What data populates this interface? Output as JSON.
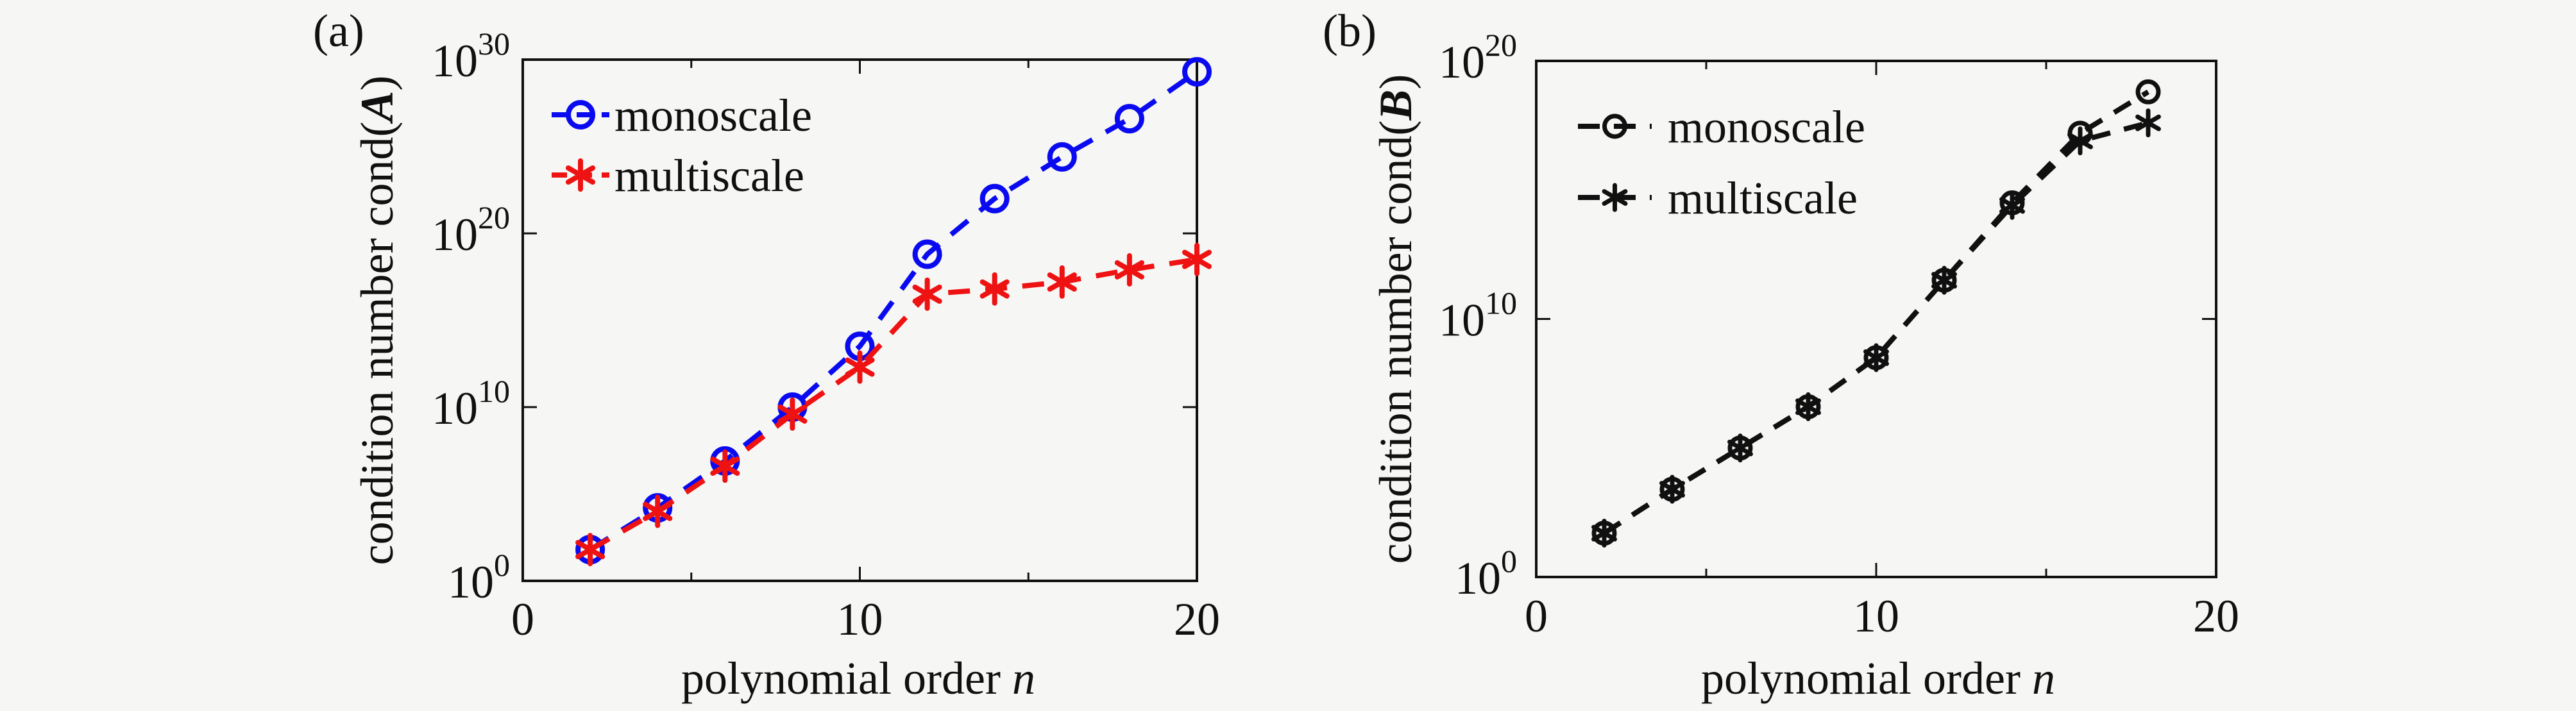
{
  "figure": {
    "background": "#f6f6f4",
    "ink": "#101010"
  },
  "chart_data": [
    {
      "id": "a",
      "type": "line",
      "panel_label": "(a)",
      "title": "",
      "xlabel_prefix": "polynomial order ",
      "xlabel_var": "n",
      "ylabel_prefix": "condition number cond(",
      "ylabel_var": "A",
      "ylabel_suffix": ")",
      "x_axis_scale": "linear",
      "y_axis_scale": "log",
      "xlim": [
        0,
        20
      ],
      "x_major_ticks": [
        0,
        10,
        20
      ],
      "x_minor_ticks": [
        5,
        15
      ],
      "y_exponent_lim": [
        0,
        30
      ],
      "y_exponent_ticks": [
        0,
        10,
        20,
        30
      ],
      "y_tick_base": "10",
      "grid": false,
      "legend_position": "top-left-inside",
      "x": [
        2,
        4,
        6,
        8,
        10,
        12,
        14,
        16,
        18,
        20
      ],
      "series": [
        {
          "name": "monoscale",
          "color": "#0a0af0",
          "marker": "circle",
          "linestyle": "dashed",
          "y_exponents": [
            1.8,
            4.2,
            6.9,
            10.0,
            13.5,
            18.8,
            22.0,
            24.4,
            26.6,
            29.3
          ]
        },
        {
          "name": "multiscale",
          "color": "#ee1212",
          "marker": "asterisk",
          "linestyle": "dashed",
          "y_exponents": [
            1.8,
            4.0,
            6.6,
            9.6,
            12.3,
            16.5,
            16.8,
            17.2,
            17.9,
            18.5
          ]
        }
      ]
    },
    {
      "id": "b",
      "type": "line",
      "panel_label": "(b)",
      "title": "",
      "xlabel_prefix": "polynomial order ",
      "xlabel_var": "n",
      "ylabel_prefix": "condition number cond(",
      "ylabel_var": "B",
      "ylabel_suffix": ")",
      "x_axis_scale": "linear",
      "y_axis_scale": "log",
      "xlim": [
        0,
        20
      ],
      "x_major_ticks": [
        0,
        10,
        20
      ],
      "x_minor_ticks": [
        5,
        15
      ],
      "y_exponent_lim": [
        0,
        20
      ],
      "y_exponent_ticks": [
        0,
        10,
        20
      ],
      "y_tick_base": "10",
      "grid": false,
      "legend_position": "top-left-inside",
      "x": [
        2,
        4,
        6,
        8,
        10,
        12,
        14,
        16,
        18
      ],
      "series": [
        {
          "name": "monoscale",
          "color": "#101010",
          "marker": "circle",
          "linestyle": "dashed",
          "y_exponents": [
            1.7,
            3.4,
            5.0,
            6.6,
            8.5,
            11.5,
            14.5,
            17.2,
            18.8
          ]
        },
        {
          "name": "multiscale",
          "color": "#101010",
          "marker": "asterisk",
          "linestyle": "dashed",
          "y_exponents": [
            1.7,
            3.4,
            5.0,
            6.6,
            8.5,
            11.5,
            14.4,
            16.9,
            17.6
          ]
        }
      ]
    }
  ]
}
